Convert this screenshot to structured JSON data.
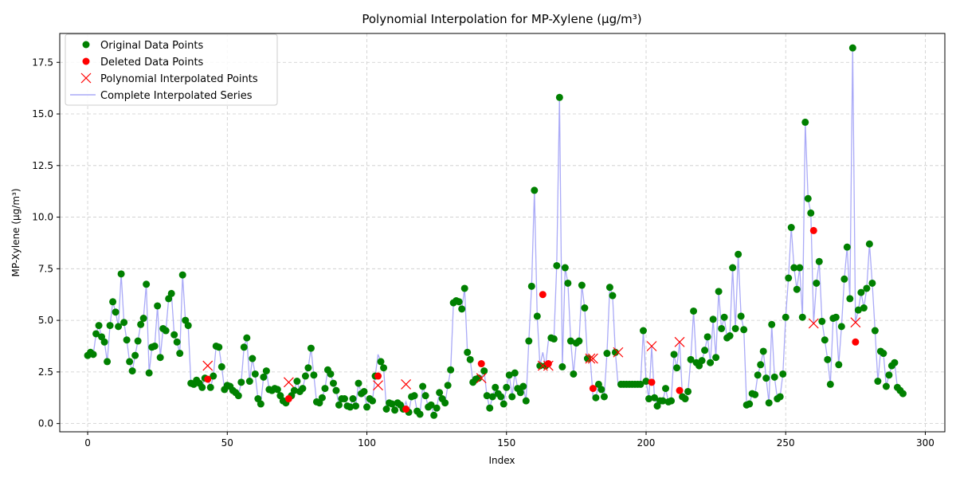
{
  "chart_data": {
    "type": "scatter",
    "title": "Polynomial Interpolation for MP-Xylene (µg/m³)",
    "xlabel": "Index",
    "ylabel": "MP-Xylene (µg/m³)",
    "xlim": [
      -10,
      307
    ],
    "ylim": [
      -0.4,
      18.9
    ],
    "xticks": [
      0,
      50,
      100,
      150,
      200,
      250,
      300
    ],
    "yticks": [
      0.0,
      2.5,
      5.0,
      7.5,
      10.0,
      12.5,
      15.0,
      17.5
    ],
    "ytick_labels": [
      "0.0",
      "2.5",
      "5.0",
      "7.5",
      "10.0",
      "12.5",
      "15.0",
      "17.5"
    ],
    "grid": true,
    "legend_position": "top-left",
    "colors": {
      "original": "#008000",
      "deleted": "#ff0000",
      "interpolated": "#ff0000",
      "series": "#aaaaf7"
    },
    "legend": [
      {
        "label": "Original Data Points",
        "marker": "circle-green"
      },
      {
        "label": "Deleted Data Points",
        "marker": "circle-red"
      },
      {
        "label": "Polynomial Interpolated Points",
        "marker": "x-red"
      },
      {
        "label": "Complete Interpolated Series",
        "marker": "line-blue"
      }
    ],
    "series_values": [
      3.3,
      3.45,
      3.35,
      4.35,
      4.75,
      4.2,
      3.95,
      3.0,
      4.75,
      5.9,
      5.4,
      4.7,
      7.25,
      4.9,
      4.05,
      3.0,
      2.55,
      3.3,
      4.0,
      4.8,
      5.1,
      6.75,
      2.45,
      3.7,
      3.75,
      5.7,
      3.2,
      4.6,
      4.5,
      6.05,
      6.3,
      4.3,
      3.95,
      3.4,
      7.2,
      5.0,
      4.75,
      1.95,
      1.9,
      2.1,
      1.95,
      1.75,
      2.2,
      2.15,
      1.75,
      2.3,
      3.75,
      3.7,
      2.75,
      1.65,
      1.85,
      1.8,
      1.6,
      1.5,
      1.35,
      2.0,
      3.7,
      4.15,
      2.05,
      3.15,
      2.4,
      1.2,
      0.95,
      2.25,
      2.55,
      1.65,
      1.6,
      1.7,
      1.65,
      1.35,
      1.1,
      1.0,
      1.2,
      1.35,
      1.6,
      2.05,
      1.55,
      1.7,
      2.3,
      2.7,
      3.65,
      2.35,
      1.05,
      1.0,
      1.25,
      1.7,
      2.6,
      2.4,
      1.95,
      1.6,
      0.9,
      1.2,
      1.2,
      0.85,
      0.8,
      1.2,
      0.85,
      1.95,
      1.45,
      1.55,
      0.8,
      1.2,
      1.1,
      2.3,
      3.35,
      3.0,
      2.7,
      0.7,
      1.0,
      0.95,
      0.65,
      1.0,
      0.9,
      0.7,
      1.05,
      0.55,
      1.3,
      1.35,
      0.6,
      0.45,
      1.8,
      1.35,
      0.8,
      0.9,
      0.4,
      0.75,
      1.5,
      1.2,
      1.0,
      1.85,
      2.6,
      5.85,
      5.95,
      5.9,
      5.55,
      6.55,
      3.45,
      3.1,
      2.0,
      2.15,
      2.2,
      2.25,
      2.55,
      1.35,
      0.75,
      1.3,
      1.75,
      1.45,
      1.3,
      0.95,
      1.75,
      2.35,
      1.3,
      2.45,
      1.7,
      1.5,
      1.8,
      1.1,
      4.0,
      6.65,
      11.3,
      5.2,
      2.8,
      3.45,
      2.8,
      4.0,
      4.15,
      4.1,
      7.65,
      15.8,
      2.75,
      7.55,
      6.8,
      4.0,
      2.4,
      3.9,
      4.0,
      6.7,
      5.6,
      3.15,
      3.15,
      1.3,
      1.25,
      1.9,
      1.65,
      1.3,
      3.4,
      6.6,
      6.2,
      3.45,
      1.85,
      1.9,
      1.9,
      1.9,
      1.9,
      1.9,
      1.9,
      1.9,
      1.9,
      4.5,
      2.05,
      1.2,
      3.75,
      1.25,
      0.85,
      1.1,
      1.1,
      1.7,
      1.05,
      1.1,
      3.35,
      2.7,
      3.95,
      1.3,
      1.2,
      1.55,
      3.1,
      5.45,
      2.95,
      2.8,
      3.05,
      3.55,
      4.2,
      2.95,
      5.05,
      3.2,
      6.4,
      4.6,
      5.15,
      4.15,
      4.25,
      7.55,
      4.6,
      8.2,
      5.2,
      4.55,
      0.9,
      0.95,
      1.45,
      1.4,
      2.35,
      2.85,
      3.5,
      2.2,
      1.0,
      4.8,
      2.25,
      1.2,
      1.3,
      2.4,
      5.15,
      7.05,
      9.5,
      7.55,
      6.5,
      7.55,
      5.15,
      14.6,
      10.9,
      10.2,
      4.85,
      6.8,
      7.85,
      4.95,
      4.05,
      3.1,
      1.9,
      5.1,
      5.15,
      2.85,
      4.7,
      7.0,
      8.55,
      6.05,
      18.2,
      4.9,
      5.5,
      6.35,
      5.6,
      6.55,
      8.7,
      6.8,
      4.5,
      2.05,
      3.5,
      3.4,
      1.8,
      2.35,
      2.8,
      2.95,
      1.75,
      1.6,
      1.45
    ],
    "deleted_points": [
      {
        "x": 43,
        "y": 2.15
      },
      {
        "x": 72,
        "y": 1.2
      },
      {
        "x": 104,
        "y": 2.3
      },
      {
        "x": 114,
        "y": 0.7
      },
      {
        "x": 141,
        "y": 2.9
      },
      {
        "x": 163,
        "y": 6.25
      },
      {
        "x": 165,
        "y": 2.9
      },
      {
        "x": 181,
        "y": 1.7
      },
      {
        "x": 202,
        "y": 2.0
      },
      {
        "x": 212,
        "y": 1.6
      },
      {
        "x": 260,
        "y": 9.35
      },
      {
        "x": 275,
        "y": 3.95
      }
    ],
    "interpolated_points": [
      {
        "x": 43,
        "y": 2.8
      },
      {
        "x": 72,
        "y": 2.0
      },
      {
        "x": 104,
        "y": 1.85
      },
      {
        "x": 114,
        "y": 1.9
      },
      {
        "x": 141,
        "y": 2.2
      },
      {
        "x": 163,
        "y": 2.8
      },
      {
        "x": 165,
        "y": 2.8
      },
      {
        "x": 180,
        "y": 3.15
      },
      {
        "x": 181,
        "y": 3.15
      },
      {
        "x": 190,
        "y": 3.45
      },
      {
        "x": 202,
        "y": 3.75
      },
      {
        "x": 212,
        "y": 3.95
      },
      {
        "x": 260,
        "y": 4.85
      },
      {
        "x": 275,
        "y": 4.9
      }
    ]
  }
}
